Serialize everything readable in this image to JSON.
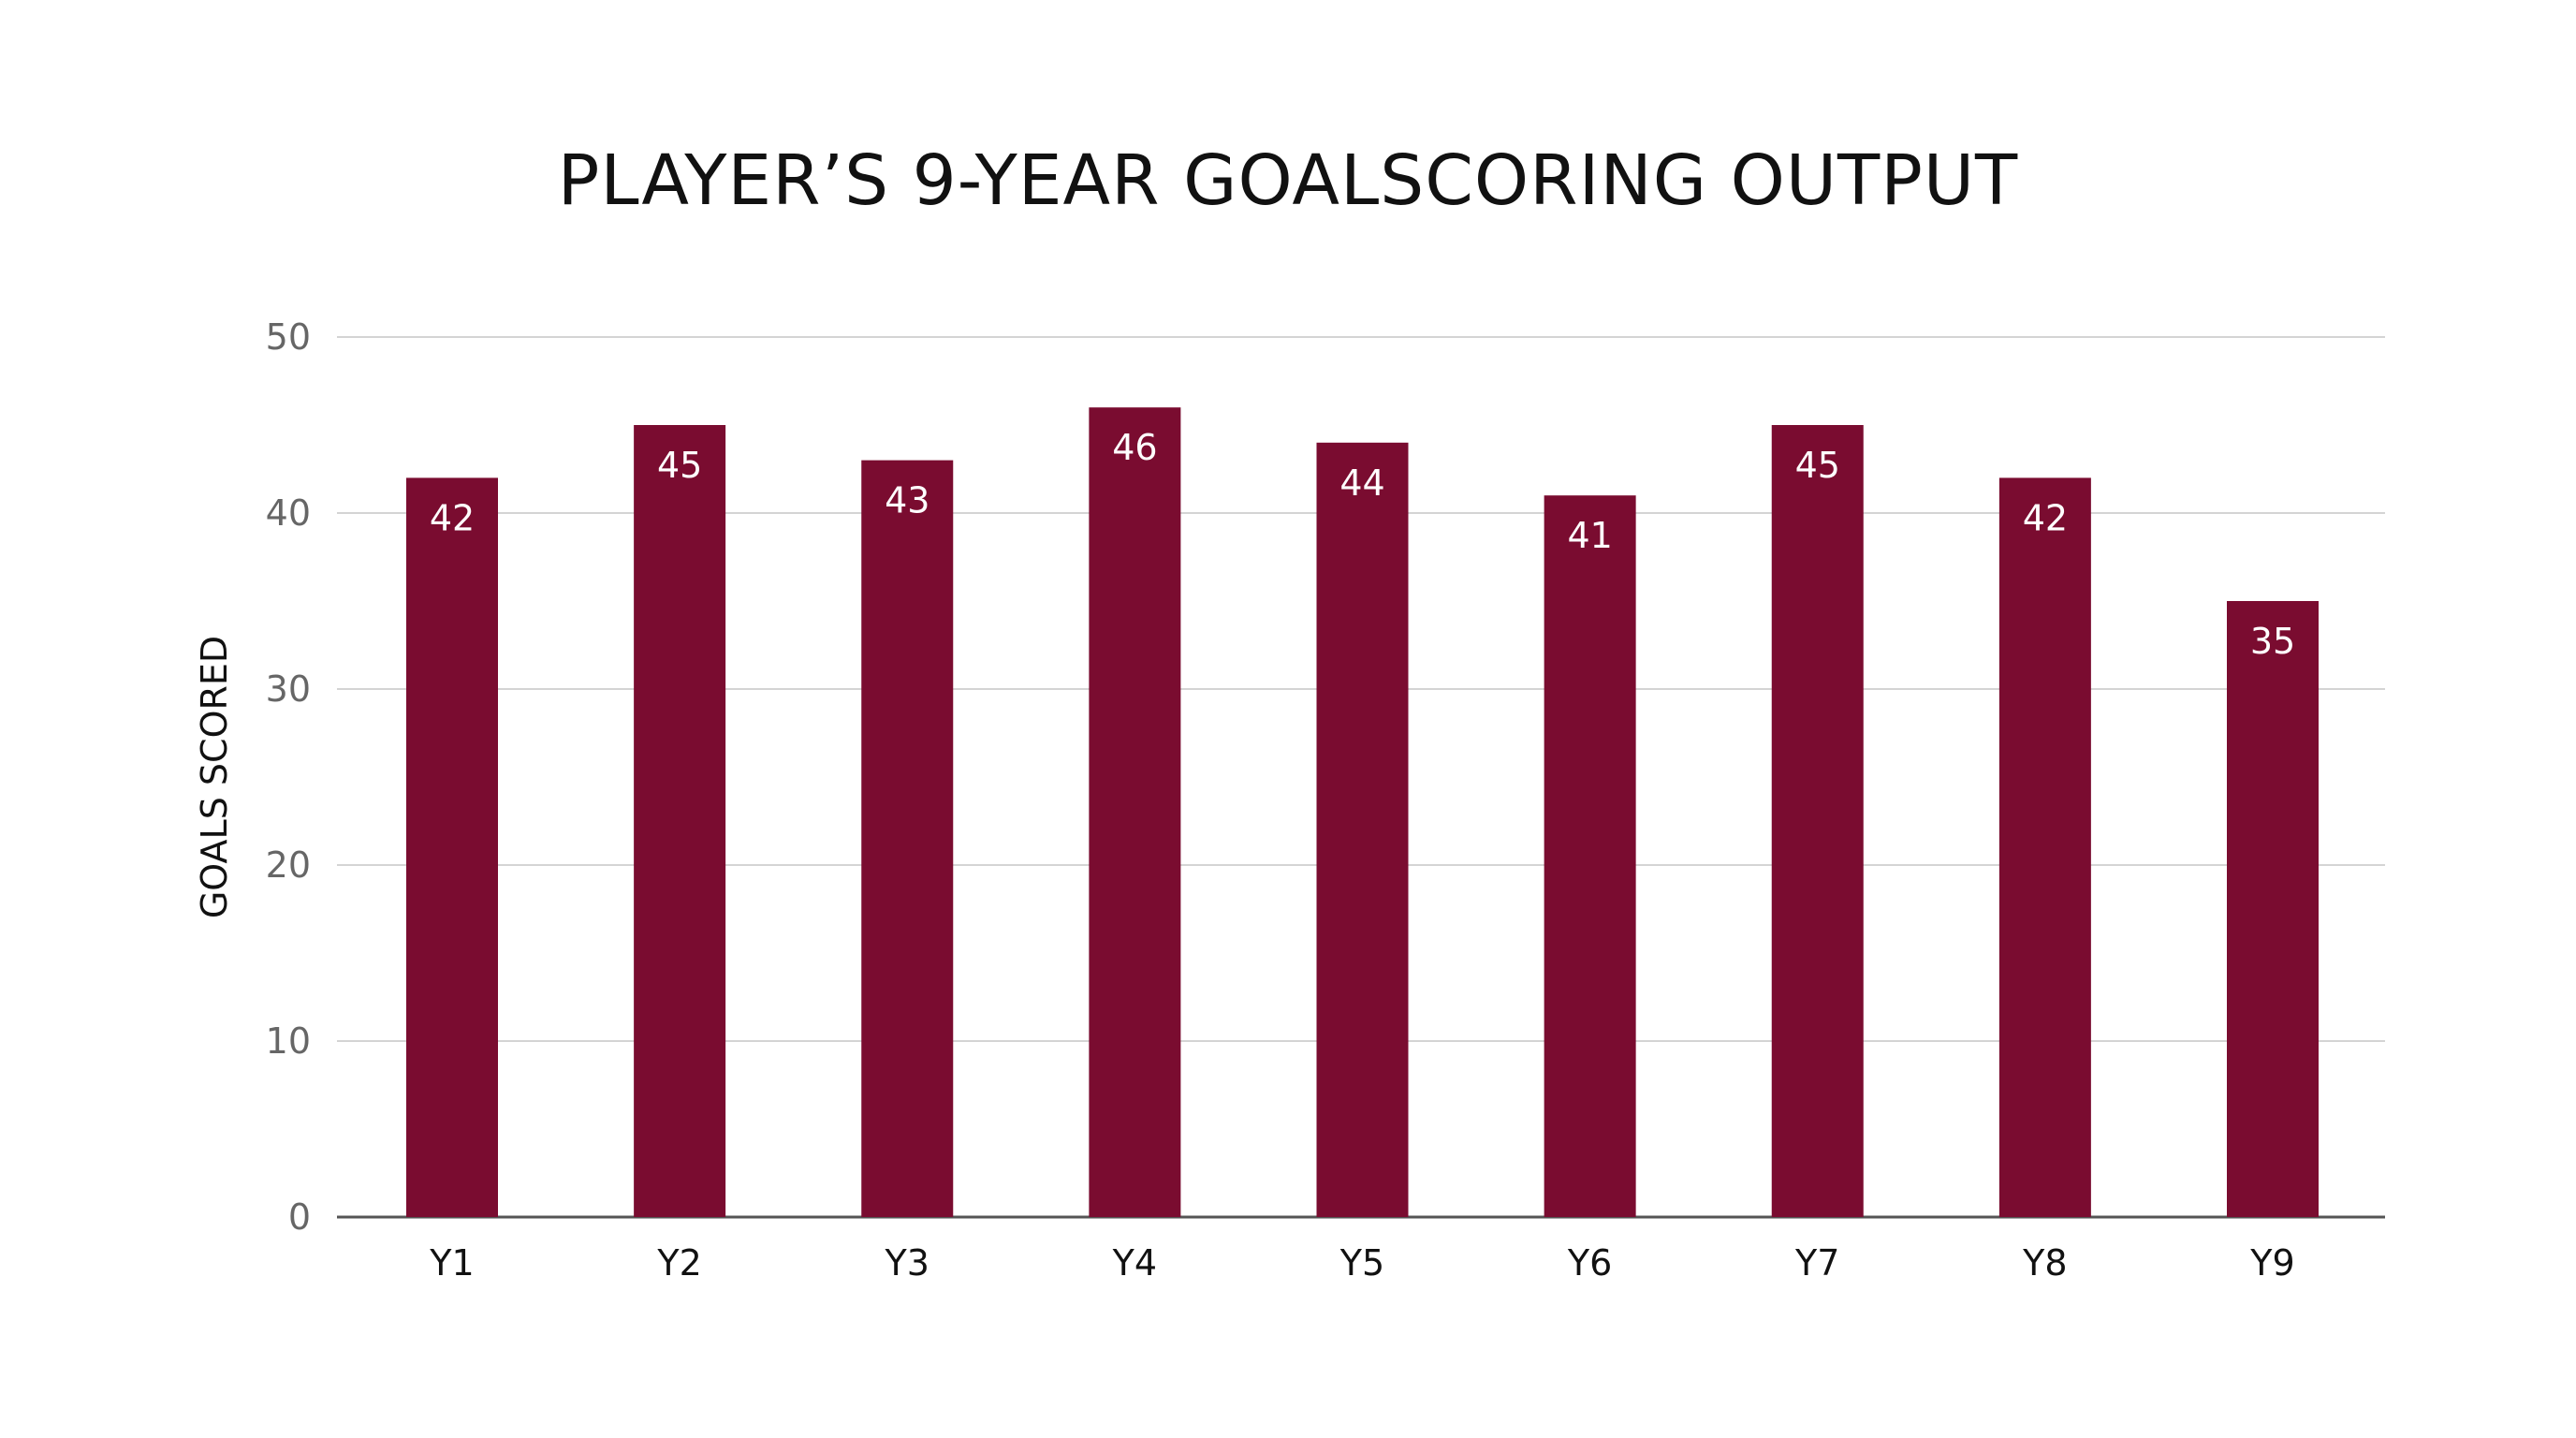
{
  "chart_data": {
    "type": "bar",
    "title": "PLAYER’S 9-YEAR GOALSCORING OUTPUT",
    "xlabel": "",
    "ylabel": "GOALS SCORED",
    "categories": [
      "Y1",
      "Y2",
      "Y3",
      "Y4",
      "Y5",
      "Y6",
      "Y7",
      "Y8",
      "Y9"
    ],
    "values": [
      42,
      45,
      43,
      46,
      44,
      41,
      45,
      42,
      35
    ],
    "ylim": [
      0,
      50
    ],
    "yticks": [
      0,
      10,
      20,
      30,
      40,
      50
    ],
    "grid": true,
    "legend": "none",
    "data_labels": "inside-end",
    "bar_color": "#7a0c30",
    "label_color": "#ffffff"
  }
}
